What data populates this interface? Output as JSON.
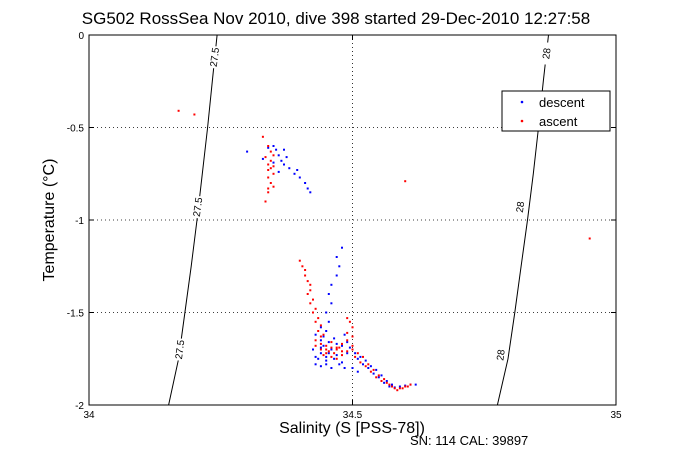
{
  "chart_data": {
    "type": "scatter",
    "title": "SG502 RossSea Nov 2010, dive 398 started 29-Dec-2010 12:27:58",
    "xlabel": "Salinity (S [PSS-78])",
    "ylabel": "Temperature (°C)",
    "xlim": [
      34,
      35
    ],
    "ylim": [
      -2,
      0
    ],
    "x_ticks": [
      "34",
      "34.5",
      "35"
    ],
    "y_ticks": [
      "0",
      "-0.5",
      "-1",
      "-1.5",
      "-2"
    ],
    "grid": "dotted, at major ticks",
    "legend_position": "top-right",
    "footer": "SN: 114  CAL: 39897",
    "colors": {
      "descent": "#0000ff",
      "ascent": "#ff0000",
      "axes": "#000000",
      "contours": "#000000"
    },
    "density_contours": [
      {
        "label": "27.5",
        "points": [
          [
            34.151,
            -2.0
          ],
          [
            34.17,
            -1.75
          ],
          [
            34.182,
            -1.5
          ],
          [
            34.194,
            -1.25
          ],
          [
            34.205,
            -1.0
          ],
          [
            34.215,
            -0.75
          ],
          [
            34.225,
            -0.5
          ],
          [
            34.234,
            -0.25
          ],
          [
            34.243,
            0.0
          ]
        ],
        "label_positions": [
          [
            34.172,
            -1.7
          ],
          [
            34.206,
            -0.93
          ],
          [
            34.238,
            -0.12
          ]
        ]
      },
      {
        "label": "28",
        "points": [
          [
            34.775,
            -2.0
          ],
          [
            34.795,
            -1.75
          ],
          [
            34.808,
            -1.5
          ],
          [
            34.82,
            -1.25
          ],
          [
            34.832,
            -1.0
          ],
          [
            34.843,
            -0.75
          ],
          [
            34.853,
            -0.5
          ],
          [
            34.862,
            -0.25
          ],
          [
            34.872,
            0.0
          ]
        ],
        "label_positions": [
          [
            34.781,
            -1.73
          ],
          [
            34.818,
            -0.93
          ],
          [
            34.868,
            -0.1
          ]
        ]
      }
    ],
    "series": [
      {
        "name": "descent",
        "marker": "dot",
        "points": [
          [
            34.3,
            -0.63
          ],
          [
            34.33,
            -0.67
          ],
          [
            34.34,
            -0.61
          ],
          [
            34.35,
            -0.6
          ],
          [
            34.355,
            -0.62
          ],
          [
            34.36,
            -0.65
          ],
          [
            34.365,
            -0.68
          ],
          [
            34.37,
            -0.7
          ],
          [
            34.375,
            -0.66
          ],
          [
            34.38,
            -0.72
          ],
          [
            34.39,
            -0.75
          ],
          [
            34.395,
            -0.73
          ],
          [
            34.4,
            -0.77
          ],
          [
            34.41,
            -0.8
          ],
          [
            34.415,
            -0.83
          ],
          [
            34.42,
            -0.85
          ],
          [
            34.35,
            -0.69
          ],
          [
            34.36,
            -0.74
          ],
          [
            34.37,
            -0.62
          ],
          [
            34.48,
            -1.15
          ],
          [
            34.47,
            -1.2
          ],
          [
            34.475,
            -1.25
          ],
          [
            34.47,
            -1.3
          ],
          [
            34.46,
            -1.35
          ],
          [
            34.455,
            -1.4
          ],
          [
            34.46,
            -1.45
          ],
          [
            34.45,
            -1.5
          ],
          [
            34.455,
            -1.55
          ],
          [
            34.45,
            -1.6
          ],
          [
            34.44,
            -1.65
          ],
          [
            34.43,
            -1.62
          ],
          [
            34.445,
            -1.68
          ],
          [
            34.44,
            -1.72
          ],
          [
            34.435,
            -1.75
          ],
          [
            34.43,
            -1.78
          ],
          [
            34.45,
            -1.76
          ],
          [
            34.46,
            -1.7
          ],
          [
            34.47,
            -1.73
          ],
          [
            34.48,
            -1.77
          ],
          [
            34.49,
            -1.72
          ],
          [
            34.5,
            -1.7
          ],
          [
            34.51,
            -1.75
          ],
          [
            34.52,
            -1.78
          ],
          [
            34.53,
            -1.8
          ],
          [
            34.54,
            -1.83
          ],
          [
            34.55,
            -1.85
          ],
          [
            34.56,
            -1.88
          ],
          [
            34.57,
            -1.9
          ],
          [
            34.58,
            -1.905
          ],
          [
            34.59,
            -1.9
          ],
          [
            34.6,
            -1.895
          ],
          [
            34.61,
            -1.89
          ],
          [
            34.62,
            -1.89
          ],
          [
            34.445,
            -1.63
          ],
          [
            34.44,
            -1.69
          ],
          [
            34.45,
            -1.74
          ],
          [
            34.425,
            -1.7
          ],
          [
            34.43,
            -1.74
          ],
          [
            34.485,
            -1.62
          ],
          [
            34.49,
            -1.66
          ],
          [
            34.495,
            -1.69
          ],
          [
            34.505,
            -1.72
          ],
          [
            34.515,
            -1.74
          ],
          [
            34.525,
            -1.76
          ],
          [
            34.535,
            -1.79
          ],
          [
            34.545,
            -1.81
          ],
          [
            34.555,
            -1.84
          ],
          [
            34.565,
            -1.87
          ],
          [
            34.575,
            -1.89
          ],
          [
            34.455,
            -1.72
          ],
          [
            34.465,
            -1.75
          ],
          [
            34.475,
            -1.78
          ],
          [
            34.485,
            -1.8
          ],
          [
            34.5,
            -1.8
          ],
          [
            34.51,
            -1.82
          ],
          [
            34.46,
            -1.8
          ],
          [
            34.45,
            -1.78
          ],
          [
            34.44,
            -1.79
          ],
          [
            34.47,
            -1.67
          ],
          [
            34.48,
            -1.68
          ],
          [
            34.455,
            -1.66
          ],
          [
            34.465,
            -1.64
          ],
          [
            34.44,
            -1.58
          ]
        ]
      },
      {
        "name": "ascent",
        "marker": "dot",
        "points": [
          [
            34.17,
            -0.41
          ],
          [
            34.2,
            -0.43
          ],
          [
            34.33,
            -0.55
          ],
          [
            34.34,
            -0.6
          ],
          [
            34.345,
            -0.63
          ],
          [
            34.35,
            -0.65
          ],
          [
            34.335,
            -0.66
          ],
          [
            34.34,
            -0.7
          ],
          [
            34.345,
            -0.72
          ],
          [
            34.35,
            -0.75
          ],
          [
            34.34,
            -0.77
          ],
          [
            34.345,
            -0.8
          ],
          [
            34.34,
            -0.83
          ],
          [
            34.335,
            -0.9
          ],
          [
            34.34,
            -0.73
          ],
          [
            34.6,
            -0.79
          ],
          [
            34.95,
            -1.1
          ],
          [
            34.4,
            -1.22
          ],
          [
            34.405,
            -1.25
          ],
          [
            34.41,
            -1.3
          ],
          [
            34.42,
            -1.35
          ],
          [
            34.415,
            -1.4
          ],
          [
            34.42,
            -1.45
          ],
          [
            34.425,
            -1.5
          ],
          [
            34.43,
            -1.55
          ],
          [
            34.435,
            -1.6
          ],
          [
            34.44,
            -1.63
          ],
          [
            34.43,
            -1.65
          ],
          [
            34.44,
            -1.67
          ],
          [
            34.45,
            -1.68
          ],
          [
            34.46,
            -1.66
          ],
          [
            34.47,
            -1.69
          ],
          [
            34.48,
            -1.67
          ],
          [
            34.49,
            -1.65
          ],
          [
            34.5,
            -1.7
          ],
          [
            34.51,
            -1.72
          ],
          [
            34.52,
            -1.74
          ],
          [
            34.53,
            -1.78
          ],
          [
            34.54,
            -1.81
          ],
          [
            34.55,
            -1.84
          ],
          [
            34.56,
            -1.86
          ],
          [
            34.57,
            -1.89
          ],
          [
            34.58,
            -1.91
          ],
          [
            34.59,
            -1.91
          ],
          [
            34.6,
            -1.9
          ],
          [
            34.61,
            -1.89
          ],
          [
            34.49,
            -1.53
          ],
          [
            34.495,
            -1.55
          ],
          [
            34.5,
            -1.58
          ],
          [
            34.49,
            -1.61
          ],
          [
            34.5,
            -1.63
          ],
          [
            34.445,
            -1.73
          ],
          [
            34.45,
            -1.7
          ],
          [
            34.455,
            -1.71
          ],
          [
            34.46,
            -1.69
          ],
          [
            34.465,
            -1.72
          ],
          [
            34.47,
            -1.7
          ],
          [
            34.475,
            -1.69
          ],
          [
            34.48,
            -1.71
          ],
          [
            34.505,
            -1.74
          ],
          [
            34.515,
            -1.77
          ],
          [
            34.525,
            -1.79
          ],
          [
            34.535,
            -1.82
          ],
          [
            34.545,
            -1.85
          ],
          [
            34.555,
            -1.87
          ],
          [
            34.565,
            -1.88
          ],
          [
            34.575,
            -1.9
          ],
          [
            34.585,
            -1.92
          ],
          [
            34.595,
            -1.91
          ],
          [
            34.605,
            -1.9
          ],
          [
            34.41,
            -1.27
          ],
          [
            34.415,
            -1.33
          ],
          [
            34.42,
            -1.38
          ],
          [
            34.425,
            -1.43
          ],
          [
            34.43,
            -1.48
          ],
          [
            34.435,
            -1.53
          ],
          [
            34.44,
            -1.57
          ],
          [
            34.445,
            -1.62
          ],
          [
            34.43,
            -1.68
          ],
          [
            34.44,
            -1.7
          ],
          [
            34.45,
            -1.72
          ],
          [
            34.46,
            -1.74
          ],
          [
            34.47,
            -1.75
          ],
          [
            34.48,
            -1.73
          ],
          [
            34.49,
            -1.71
          ],
          [
            34.5,
            -1.68
          ],
          [
            34.345,
            -0.68
          ],
          [
            34.35,
            -0.71
          ],
          [
            34.34,
            -0.85
          ],
          [
            34.35,
            -0.82
          ]
        ]
      }
    ]
  }
}
